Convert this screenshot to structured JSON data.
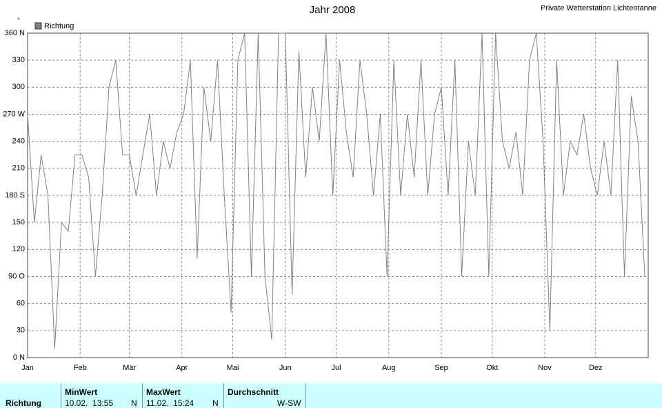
{
  "chart_data": {
    "type": "line",
    "title": "Jahr 2008",
    "annotation": "Private Wetterstation Lichtentanne",
    "y_unit": "°",
    "xlim": [
      0,
      366
    ],
    "xticks": [
      {
        "value": 0,
        "label": "Jan"
      },
      {
        "value": 31,
        "label": "Feb"
      },
      {
        "value": 60,
        "label": "Mär"
      },
      {
        "value": 91,
        "label": "Apr"
      },
      {
        "value": 121,
        "label": "Mai"
      },
      {
        "value": 152,
        "label": "Jun"
      },
      {
        "value": 182,
        "label": "Jul"
      },
      {
        "value": 213,
        "label": "Aug"
      },
      {
        "value": 244,
        "label": "Sep"
      },
      {
        "value": 274,
        "label": "Okt"
      },
      {
        "value": 305,
        "label": "Nov"
      },
      {
        "value": 335,
        "label": "Dez"
      }
    ],
    "ylim": [
      0,
      360
    ],
    "yticks": [
      {
        "value": 0,
        "label": "0 N"
      },
      30,
      60,
      {
        "value": 90,
        "label": "90 O"
      },
      120,
      150,
      {
        "value": 180,
        "label": "180 S"
      },
      210,
      240,
      {
        "value": 270,
        "label": "270 W"
      },
      300,
      330,
      {
        "value": 360,
        "label": "360 N"
      }
    ],
    "grid": true,
    "legend": "top-left",
    "series": [
      {
        "name": "Richtung",
        "color": "#808080",
        "x": [
          0,
          4,
          8,
          12,
          16,
          20,
          24,
          28,
          32,
          36,
          40,
          44,
          48,
          52,
          56,
          60,
          64,
          68,
          72,
          76,
          80,
          84,
          88,
          92,
          96,
          100,
          104,
          108,
          112,
          116,
          120,
          124,
          128,
          132,
          136,
          140,
          144,
          148,
          152,
          156,
          160,
          164,
          168,
          172,
          176,
          180,
          184,
          188,
          192,
          196,
          200,
          204,
          208,
          212,
          216,
          220,
          224,
          228,
          232,
          236,
          240,
          244,
          248,
          252,
          256,
          260,
          264,
          268,
          272,
          276,
          280,
          284,
          288,
          292,
          296,
          300,
          304,
          308,
          312,
          316,
          320,
          324,
          328,
          332,
          336,
          340,
          344,
          348,
          352,
          356,
          360,
          364
        ],
        "values": [
          270,
          150,
          225,
          180,
          10,
          150,
          140,
          225,
          225,
          200,
          90,
          180,
          300,
          330,
          225,
          225,
          180,
          225,
          270,
          180,
          240,
          210,
          250,
          270,
          330,
          110,
          300,
          240,
          330,
          180,
          50,
          330,
          360,
          90,
          360,
          90,
          20,
          360,
          360,
          70,
          340,
          200,
          300,
          240,
          360,
          180,
          330,
          250,
          200,
          330,
          270,
          180,
          270,
          90,
          330,
          180,
          270,
          200,
          330,
          180,
          270,
          300,
          180,
          330,
          90,
          240,
          180,
          360,
          90,
          360,
          240,
          210,
          250,
          180,
          330,
          360,
          240,
          30,
          330,
          180,
          240,
          225,
          270,
          210,
          180,
          240,
          180,
          330,
          90,
          290,
          240,
          90
        ]
      }
    ]
  },
  "table": {
    "headers": [
      "MinWert",
      "MaxWert",
      "Durchschnitt"
    ],
    "rows": [
      [
        "Richtung",
        "10.02.  13:55",
        "N",
        "11.02.  15:24",
        "N",
        "W-SW"
      ]
    ]
  }
}
